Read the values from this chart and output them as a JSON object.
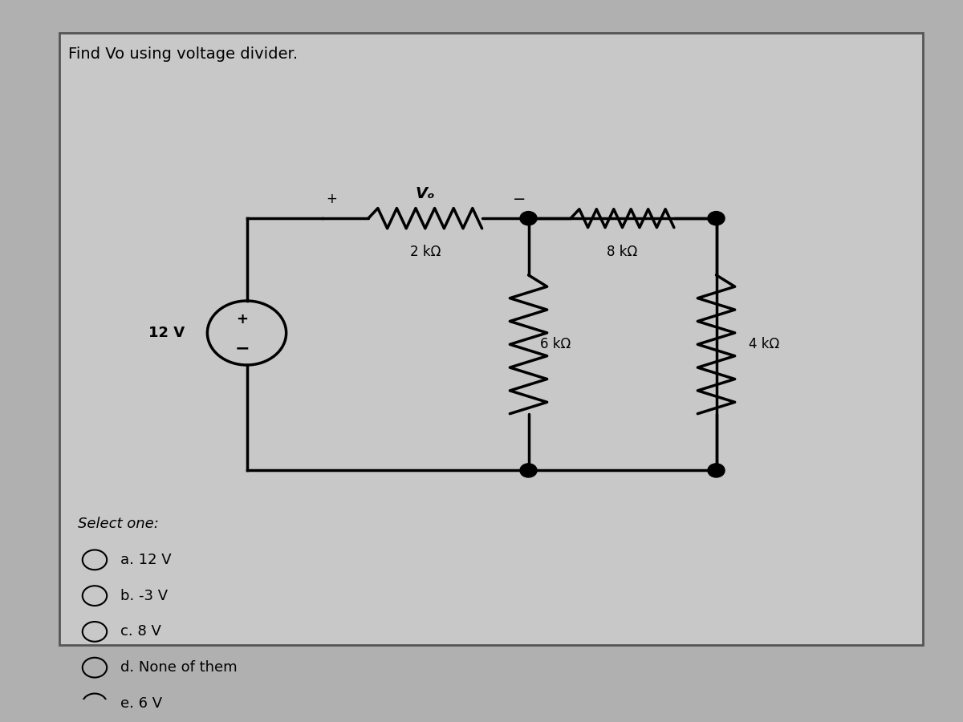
{
  "title": "Find Vo using voltage divider.",
  "background_color": "#b0b0b0",
  "panel_color": "#c8c8c8",
  "line_color": "#000000",
  "wire_lw": 2.5,
  "resistor_lw": 2.5,
  "options": [
    "a. 12 V",
    "b. -3 V",
    "c. 8 V",
    "d. None of them",
    "e. 6 V"
  ],
  "select_one_text": "Select one:",
  "title_fontsize": 14,
  "options_fontsize": 13,
  "labels": {
    "R1": "2 kΩ",
    "R2": "8 kΩ",
    "R3": "6 kΩ",
    "R4": "4 kΩ",
    "Vs": "12 V",
    "Vo": "Vₒ"
  }
}
